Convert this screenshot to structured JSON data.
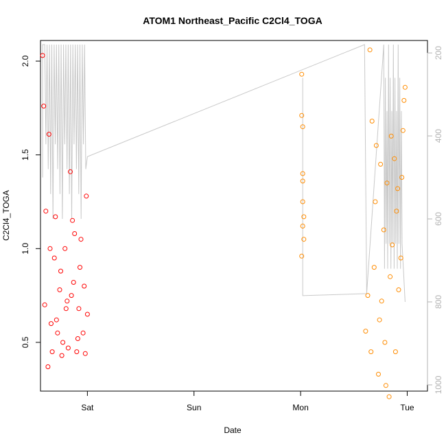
{
  "chart_data": {
    "type": "scatter",
    "title": "ATOM1 Northeast_Pacific C2Cl4_TOGA",
    "xlabel": "Date",
    "ylabel": "C2Cl4_TOGA",
    "x_ticks": [
      "Sat",
      "Sun",
      "Mon",
      "Tue"
    ],
    "x_tick_values": [
      1.0,
      2.0,
      3.0,
      4.0
    ],
    "xlim": [
      0.56,
      4.19
    ],
    "ylim": [
      0.24,
      2.11
    ],
    "y_ticks": [
      0.5,
      1.0,
      1.5,
      2.0
    ],
    "y_tick_labels": [
      "0.5",
      "1.0",
      "1.5",
      "2.0"
    ],
    "y2_ticks": [
      200,
      400,
      600,
      800,
      1000
    ],
    "y2_lim": [
      1015,
      170
    ],
    "grid": false,
    "colors": {
      "series1": "#ff0000",
      "series2": "#ff8c00",
      "altitude_line": "#c8c8c8",
      "right_axis": "#b3b3b3"
    },
    "series": [
      {
        "x": [
          0.58,
          0.59,
          0.6,
          0.61,
          0.63,
          0.64,
          0.65,
          0.66,
          0.67,
          0.69,
          0.7,
          0.71,
          0.72,
          0.74,
          0.75,
          0.76,
          0.77,
          0.79,
          0.8,
          0.81,
          0.82,
          0.84,
          0.85,
          0.86,
          0.87,
          0.88,
          0.9,
          0.91,
          0.92,
          0.93,
          0.94,
          0.96,
          0.97,
          0.98,
          0.99,
          1.0
        ],
        "y": [
          2.03,
          1.76,
          0.7,
          1.2,
          0.37,
          1.61,
          1.0,
          0.6,
          0.45,
          0.95,
          1.17,
          0.62,
          0.55,
          0.78,
          0.88,
          0.43,
          0.5,
          1.0,
          0.68,
          0.72,
          0.47,
          1.41,
          0.75,
          1.15,
          0.82,
          1.08,
          0.45,
          0.52,
          0.68,
          0.9,
          1.05,
          0.55,
          0.8,
          0.44,
          1.28,
          0.65
        ]
      },
      {
        "x": [
          3.01,
          3.01,
          3.02,
          3.02,
          3.02,
          3.03,
          3.03,
          3.01,
          3.02,
          3.02,
          3.61,
          3.63,
          3.65,
          3.66,
          3.67,
          3.69,
          3.7,
          3.71,
          3.73,
          3.74,
          3.75,
          3.76,
          3.78,
          3.79,
          3.8,
          3.81,
          3.83,
          3.84,
          3.85,
          3.86,
          3.88,
          3.89,
          3.9,
          3.91,
          3.92,
          3.94,
          3.95,
          3.96,
          3.97,
          3.98
        ],
        "y": [
          1.93,
          1.71,
          1.65,
          1.4,
          1.36,
          1.17,
          1.05,
          0.96,
          1.25,
          1.12,
          0.56,
          0.75,
          2.06,
          0.45,
          1.68,
          0.9,
          1.25,
          1.55,
          0.33,
          0.62,
          1.45,
          0.72,
          1.1,
          0.5,
          0.27,
          1.35,
          0.21,
          0.85,
          1.6,
          1.02,
          1.48,
          0.45,
          1.2,
          1.32,
          0.78,
          0.95,
          1.38,
          1.63,
          1.79,
          1.86
        ]
      }
    ]
  }
}
